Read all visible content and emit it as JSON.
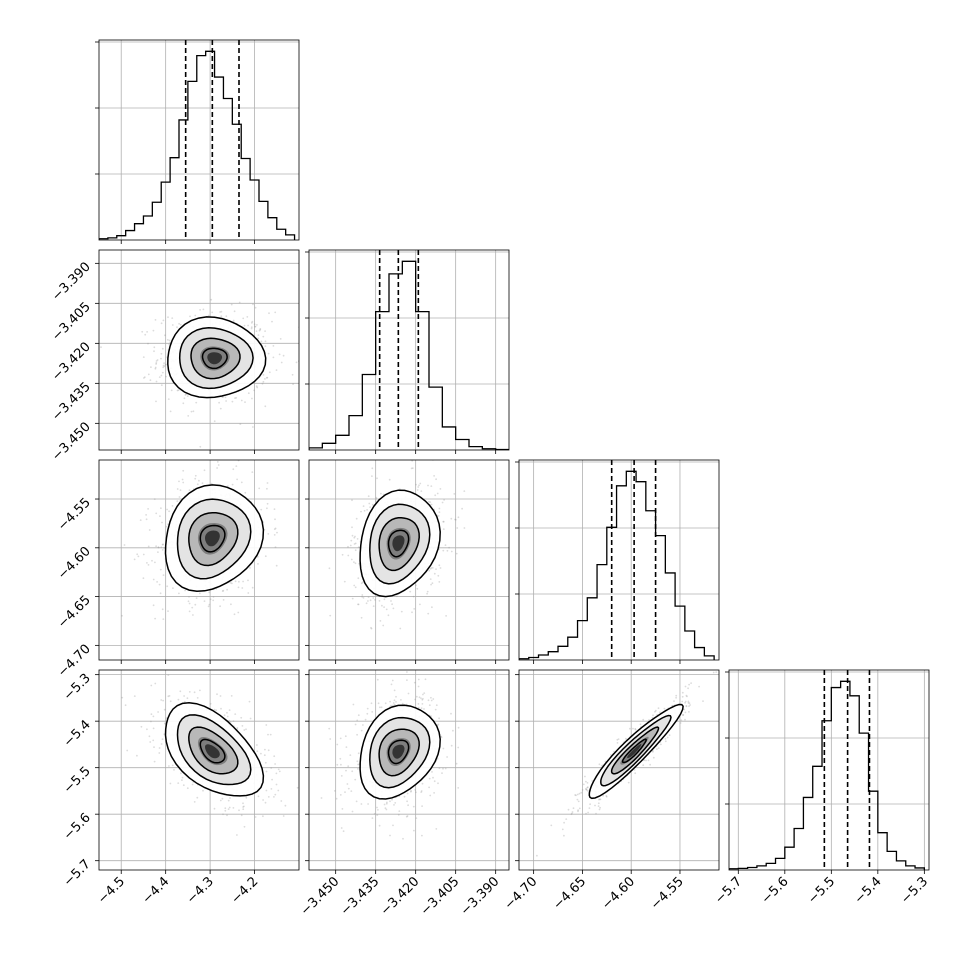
{
  "chart_data": {
    "type": "corner",
    "params": [
      {
        "range": [
          -4.55,
          -4.1
        ],
        "ticks": [
          -4.5,
          -4.4,
          -4.3,
          -4.2
        ],
        "tick_labels": [
          "−4.5",
          "−4.4",
          "−4.3",
          "−4.2"
        ],
        "median": -4.295,
        "q16": -4.355,
        "q84": -4.235,
        "hist_centers": [
          -4.54,
          -4.52,
          -4.5,
          -4.48,
          -4.46,
          -4.44,
          -4.42,
          -4.4,
          -4.38,
          -4.36,
          -4.34,
          -4.32,
          -4.3,
          -4.28,
          -4.26,
          -4.24,
          -4.22,
          -4.2,
          -4.18,
          -4.16,
          -4.14,
          -4.12
        ],
        "hist_counts": [
          3,
          5,
          10,
          22,
          38,
          56,
          88,
          135,
          192,
          280,
          370,
          430,
          440,
          380,
          330,
          270,
          190,
          140,
          90,
          52,
          25,
          12
        ]
      },
      {
        "range": [
          -3.46,
          -3.385
        ],
        "ticks": [
          -3.45,
          -3.435,
          -3.42,
          -3.405,
          -3.39
        ],
        "tick_labels": [
          "−3.450",
          "−3.435",
          "−3.420",
          "−3.405",
          "−3.390"
        ],
        "median": -3.4265,
        "q16": -3.4335,
        "q84": -3.419,
        "hist_centers": [
          -3.4575,
          -3.4525,
          -3.4475,
          -3.4425,
          -3.4375,
          -3.4325,
          -3.4275,
          -3.4225,
          -3.4175,
          -3.4125,
          -3.4075,
          -3.4025,
          -3.3975,
          -3.3925,
          -3.3875
        ],
        "hist_counts": [
          5,
          16,
          35,
          82,
          180,
          330,
          420,
          450,
          330,
          150,
          55,
          25,
          8,
          3,
          1
        ]
      },
      {
        "range": [
          -4.715,
          -4.51
        ],
        "ticks": [
          -4.7,
          -4.65,
          -4.6,
          -4.55
        ],
        "tick_labels": [
          "−4.70",
          "−4.65",
          "−4.60",
          "−4.55"
        ],
        "median": -4.597,
        "q16": -4.62,
        "q84": -4.575,
        "hist_centers": [
          -4.71,
          -4.7,
          -4.69,
          -4.68,
          -4.67,
          -4.66,
          -4.65,
          -4.64,
          -4.63,
          -4.62,
          -4.61,
          -4.6,
          -4.59,
          -4.58,
          -4.57,
          -4.56,
          -4.55,
          -4.54,
          -4.53,
          -4.52
        ],
        "hist_counts": [
          3,
          6,
          12,
          20,
          33,
          55,
          95,
          150,
          230,
          320,
          420,
          455,
          430,
          360,
          300,
          210,
          130,
          70,
          30,
          10
        ]
      },
      {
        "range": [
          -5.72,
          -5.29
        ],
        "ticks": [
          -5.7,
          -5.6,
          -5.5,
          -5.4,
          -5.3
        ],
        "tick_labels": [
          "−5.7",
          "−5.6",
          "−5.5",
          "−5.4",
          "−5.3"
        ],
        "median": -5.465,
        "q16": -5.515,
        "q84": -5.418,
        "hist_centers": [
          -5.71,
          -5.69,
          -5.67,
          -5.65,
          -5.63,
          -5.61,
          -5.59,
          -5.57,
          -5.55,
          -5.53,
          -5.51,
          -5.49,
          -5.47,
          -5.45,
          -5.43,
          -5.41,
          -5.39,
          -5.37,
          -5.35,
          -5.33,
          -5.31
        ],
        "hist_counts": [
          3,
          4,
          6,
          10,
          16,
          28,
          55,
          100,
          175,
          250,
          360,
          440,
          455,
          420,
          330,
          190,
          90,
          45,
          22,
          10,
          5
        ]
      }
    ],
    "pairs": [
      {
        "x": 0,
        "y": 1,
        "center": [
          -4.29,
          -3.4255
        ],
        "sd": [
          0.055,
          0.0075
        ],
        "rho": 0.0
      },
      {
        "x": 0,
        "y": 2,
        "center": [
          -4.295,
          -4.59
        ],
        "sd": [
          0.055,
          0.027
        ],
        "rho": 0.15
      },
      {
        "x": 1,
        "y": 2,
        "center": [
          -3.4265,
          -4.595
        ],
        "sd": [
          0.0075,
          0.027
        ],
        "rho": 0.2
      },
      {
        "x": 0,
        "y": 3,
        "center": [
          -4.295,
          -5.465
        ],
        "sd": [
          0.055,
          0.05
        ],
        "rho": -0.5
      },
      {
        "x": 1,
        "y": 3,
        "center": [
          -3.4265,
          -5.465
        ],
        "sd": [
          0.0075,
          0.05
        ],
        "rho": 0.25
      },
      {
        "x": 2,
        "y": 3,
        "center": [
          -4.597,
          -5.465
        ],
        "sd": [
          0.024,
          0.05
        ],
        "rho": 0.93
      }
    ],
    "grid": true,
    "quantiles": [
      0.16,
      0.5,
      0.84
    ],
    "contour_levels_sigma": [
      0.5,
      1.0,
      1.5,
      2.0
    ],
    "colors": {
      "ink": "#000000",
      "grid": "#b0b0b0",
      "scatter": "#9a9a9a"
    }
  }
}
